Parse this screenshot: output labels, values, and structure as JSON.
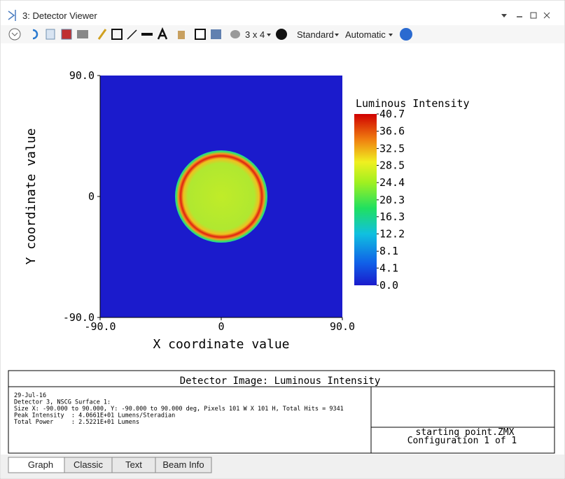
{
  "window": {
    "title": "3: Detector Viewer"
  },
  "toolbar": {
    "layout": "3 x 4",
    "standard": "Standard",
    "automatic": "Automatic"
  },
  "chart_data": {
    "type": "heatmap",
    "x_label": "X coordinate value",
    "y_label": "Y coordinate value",
    "xlim": [
      -90,
      90
    ],
    "ylim": [
      -90,
      90
    ],
    "xticks": [
      {
        "value": -90,
        "label": "-90.0"
      },
      0,
      {
        "value": 90,
        "label": "90.0"
      }
    ],
    "yticks": [
      {
        "value": -90,
        "label": "-90.0"
      },
      0,
      {
        "value": 90,
        "label": "90.0"
      }
    ],
    "colorbar_title": "Luminous Intensity",
    "colorbar_lim": [
      0,
      40.7
    ],
    "colorbar_ticks": [
      40.7,
      36.6,
      32.5,
      28.5,
      24.4,
      20.3,
      16.3,
      12.2,
      8.1,
      4.1,
      {
        "value": 0,
        "label": "0.0"
      }
    ]
  },
  "info": {
    "title": "Detector Image: Luminous Intensity",
    "lines": [
      "29-Jul-16",
      "Detector 3, NSCG Surface 1:",
      "Size X: -90.000 to 90.000, Y: -90.000 to 90.000 deg, Pixels 101 W X 101 H, Total Hits = 9341",
      "Peak Intensity  : 4.0661E+01 Lumens/Steradian",
      "Total Power     : 2.5221E+01 Lumens"
    ],
    "file": "starting point.ZMX",
    "config": "Configuration 1 of 1"
  },
  "tabs": [
    "Graph",
    "Classic",
    "Text",
    "Beam Info"
  ]
}
